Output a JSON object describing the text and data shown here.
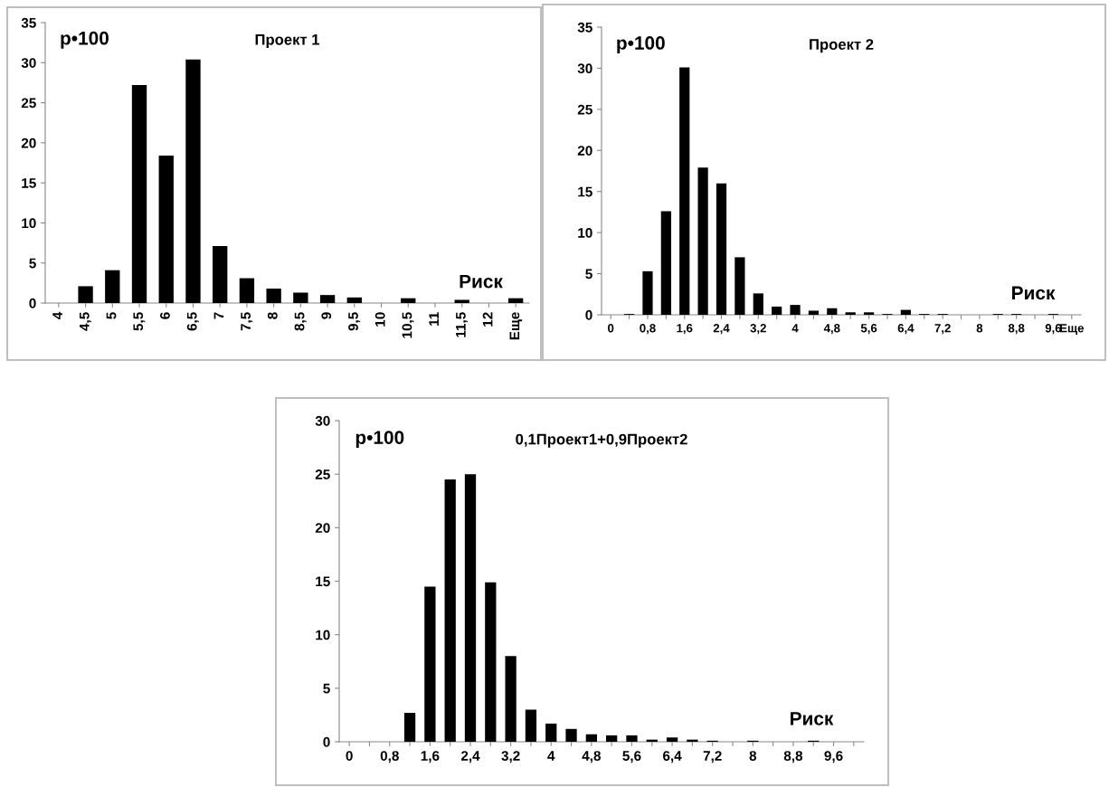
{
  "chart_data": [
    {
      "type": "bar",
      "title": "Проект 1",
      "ylabel": "p•100",
      "annotations": [
        "Риск"
      ],
      "categories": [
        "4",
        "4,5",
        "5",
        "5,5",
        "6",
        "6,5",
        "7",
        "7,5",
        "8",
        "8,5",
        "9",
        "9,5",
        "10",
        "10,5",
        "11",
        "11,5",
        "12",
        "Еще"
      ],
      "values": [
        0,
        2.1,
        4.1,
        27.2,
        18.4,
        30.4,
        7.1,
        3.1,
        1.8,
        1.3,
        1.0,
        0.7,
        0,
        0.6,
        0,
        0.4,
        0,
        0.6
      ],
      "color": "#000000",
      "ylim": [
        0,
        35
      ],
      "yticks": [
        0,
        5,
        10,
        15,
        20,
        25,
        30,
        35
      ],
      "grid": false
    },
    {
      "type": "bar",
      "title": "Проект 2",
      "ylabel": "p•100",
      "annotations": [
        "Риск"
      ],
      "categories": [
        "0",
        null,
        "0,8",
        null,
        "1,6",
        null,
        "2,4",
        null,
        "3,2",
        null,
        "4",
        null,
        "4,8",
        null,
        "5,6",
        null,
        "6,4",
        null,
        "7,2",
        null,
        "8",
        null,
        "8,8",
        null,
        "9,6",
        "Еще"
      ],
      "values": [
        0,
        0.1,
        5.3,
        12.6,
        30.1,
        17.9,
        16.0,
        7.0,
        2.6,
        1.0,
        1.2,
        0.5,
        0.8,
        0.3,
        0.3,
        0.1,
        0.6,
        0.1,
        0.1,
        0,
        0,
        0.1,
        0.1,
        0,
        0.1,
        0
      ],
      "color": "#000000",
      "ylim": [
        0,
        35
      ],
      "yticks": [
        0,
        5,
        10,
        15,
        20,
        25,
        30,
        35
      ],
      "grid": false
    },
    {
      "type": "bar",
      "title": "0,1Проект1+0,9Проект2",
      "ylabel": "p•100",
      "annotations": [
        "Риск"
      ],
      "categories": [
        "0",
        null,
        "0,8",
        null,
        "1,6",
        null,
        "2,4",
        null,
        "3,2",
        null,
        "4",
        null,
        "4,8",
        null,
        "5,6",
        null,
        "6,4",
        null,
        "7,2",
        null,
        "8",
        null,
        "8,8",
        null,
        "9,6",
        null
      ],
      "values": [
        0,
        0,
        0,
        2.7,
        14.5,
        24.5,
        25.0,
        14.9,
        8.0,
        3.0,
        1.7,
        1.2,
        0.7,
        0.6,
        0.6,
        0.2,
        0.4,
        0.2,
        0.1,
        0,
        0.1,
        0,
        0,
        0.1,
        0,
        0
      ],
      "color": "#000000",
      "ylim": [
        0,
        30
      ],
      "yticks": [
        0,
        5,
        10,
        15,
        20,
        25,
        30
      ],
      "grid": false
    }
  ]
}
